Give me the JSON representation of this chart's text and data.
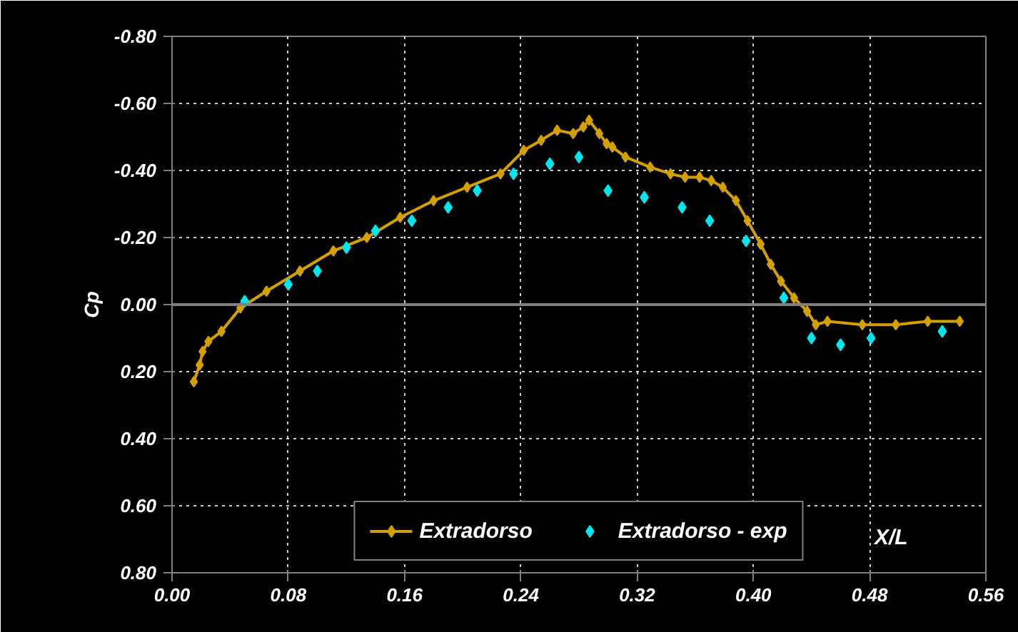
{
  "chart_data": {
    "type": "line",
    "xlabel": "X/L",
    "ylabel": "Cp",
    "xlim": [
      0,
      0.56
    ],
    "ylim": [
      0.8,
      -0.8
    ],
    "xticks": [
      {
        "value": 0,
        "label": "0.00"
      },
      {
        "value": 0.08,
        "label": "0.08"
      },
      {
        "value": 0.16,
        "label": "0.16"
      },
      {
        "value": 0.24,
        "label": "0.24"
      },
      {
        "value": 0.32,
        "label": "0.32"
      },
      {
        "value": 0.4,
        "label": "0.40"
      },
      {
        "value": 0.48,
        "label": "0.48"
      },
      {
        "value": 0.56,
        "label": "0.56"
      }
    ],
    "yticks": [
      {
        "value": -0.8,
        "label": "-0.80"
      },
      {
        "value": -0.6,
        "label": "-0.60"
      },
      {
        "value": -0.4,
        "label": "-0.40"
      },
      {
        "value": -0.2,
        "label": "-0.20"
      },
      {
        "value": 0,
        "label": "0.00"
      },
      {
        "value": 0.2,
        "label": "0.20"
      },
      {
        "value": 0.4,
        "label": "0.40"
      },
      {
        "value": 0.6,
        "label": "0.60"
      },
      {
        "value": 0.8,
        "label": "0.80"
      }
    ],
    "grid": true,
    "legend": "bottom",
    "marker": "diamond",
    "line_style": "solid",
    "ref_lines": [
      {
        "axis": "y",
        "value": 0,
        "color": "#808080",
        "line_style": "solid"
      }
    ],
    "series": [
      {
        "name": "Extradorso",
        "color": "#d4a000",
        "x": [
          0.015,
          0.019,
          0.021,
          0.025,
          0.034,
          0.047,
          0.065,
          0.088,
          0.111,
          0.134,
          0.157,
          0.18,
          0.203,
          0.226,
          0.242,
          0.254,
          0.265,
          0.276,
          0.283,
          0.287,
          0.294,
          0.299,
          0.303,
          0.312,
          0.329,
          0.343,
          0.353,
          0.363,
          0.371,
          0.379,
          0.388,
          0.396,
          0.405,
          0.412,
          0.419,
          0.428,
          0.437,
          0.443,
          0.451,
          0.475,
          0.498,
          0.52,
          0.542
        ],
        "values": [
          0.23,
          0.18,
          0.14,
          0.11,
          0.08,
          0.01,
          -0.04,
          -0.1,
          -0.16,
          -0.2,
          -0.26,
          -0.31,
          -0.35,
          -0.39,
          -0.46,
          -0.49,
          -0.52,
          -0.51,
          -0.53,
          -0.55,
          -0.51,
          -0.48,
          -0.47,
          -0.44,
          -0.41,
          -0.39,
          -0.38,
          -0.38,
          -0.37,
          -0.35,
          -0.31,
          -0.25,
          -0.18,
          -0.12,
          -0.07,
          -0.02,
          0.02,
          0.06,
          0.05,
          0.06,
          0.06,
          0.05,
          0.05
        ]
      },
      {
        "name": "Extradorso - exp",
        "type": "scatter",
        "color": "#00e5ee",
        "x": [
          0.05,
          0.08,
          0.1,
          0.12,
          0.14,
          0.165,
          0.19,
          0.21,
          0.235,
          0.26,
          0.28,
          0.3,
          0.325,
          0.351,
          0.37,
          0.395,
          0.421,
          0.44,
          0.46,
          0.481,
          0.53
        ],
        "values": [
          -0.01,
          -0.06,
          -0.1,
          -0.17,
          -0.22,
          -0.25,
          -0.29,
          -0.34,
          -0.39,
          -0.42,
          -0.44,
          -0.34,
          -0.32,
          -0.29,
          -0.25,
          -0.19,
          -0.02,
          0.1,
          0.12,
          0.1,
          0.08
        ]
      }
    ]
  }
}
